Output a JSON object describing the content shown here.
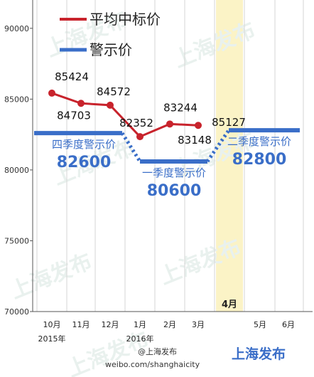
{
  "legend": {
    "avg_label": "平均中标价",
    "warn_label": "警示价",
    "avg_color": "#c8232c",
    "warn_color": "#3a6ec8"
  },
  "watermark": "上海发布",
  "footer": {
    "brand": "上海发布",
    "weibo_handle": "@上海发布",
    "weibo_url": "weibo.com/shanghaicity"
  },
  "chart_data": {
    "type": "line",
    "categories": [
      "10月",
      "11月",
      "12月",
      "1月",
      "2月",
      "3月",
      "4月",
      "5月",
      "6月"
    ],
    "year_labels": [
      "2015年",
      "2016年"
    ],
    "highlight_category": "4月",
    "ylim": [
      70000,
      92000
    ],
    "yticks": [
      70000,
      75000,
      80000,
      85000,
      90000
    ],
    "series": [
      {
        "name": "平均中标价",
        "color": "#c8232c",
        "points": [
          {
            "x": "10月",
            "y": 85424
          },
          {
            "x": "11月",
            "y": 84703
          },
          {
            "x": "12月",
            "y": 84572
          },
          {
            "x": "1月",
            "y": 82352
          },
          {
            "x": "2月",
            "y": 83244
          },
          {
            "x": "3月",
            "y": 83148
          }
        ],
        "extra_label": 85127
      },
      {
        "name": "警示价",
        "color": "#3a6ec8",
        "periods": [
          {
            "label": "四季度警示价",
            "value": 82600,
            "from": "10月",
            "to": "12月"
          },
          {
            "label": "一季度警示价",
            "value": 80600,
            "from": "1月",
            "to": "3月"
          },
          {
            "label": "二季度警示价",
            "value": 82800,
            "from": "4月",
            "to": "6月"
          }
        ]
      }
    ]
  }
}
